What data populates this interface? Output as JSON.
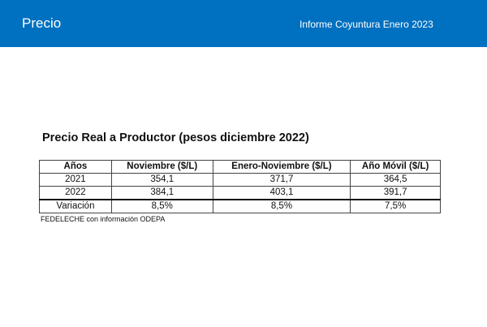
{
  "header": {
    "title": "Precio",
    "subtitle": "Informe Coyuntura Enero 2023",
    "color": "#0070C0"
  },
  "table": {
    "title": "Precio Real a Productor (pesos diciembre 2022)",
    "columns": [
      "Años",
      "Noviembre ($/L)",
      "Enero-Noviembre ($/L)",
      "Año Móvil ($/L)"
    ],
    "rows": [
      [
        "2021",
        "354,1",
        "371,7",
        "364,5"
      ],
      [
        "2022",
        "384,1",
        "403,1",
        "391,7"
      ],
      [
        "Variación",
        "8,5%",
        "8,5%",
        "7,5%"
      ]
    ],
    "source": "FEDELECHE con información ODEPA"
  }
}
